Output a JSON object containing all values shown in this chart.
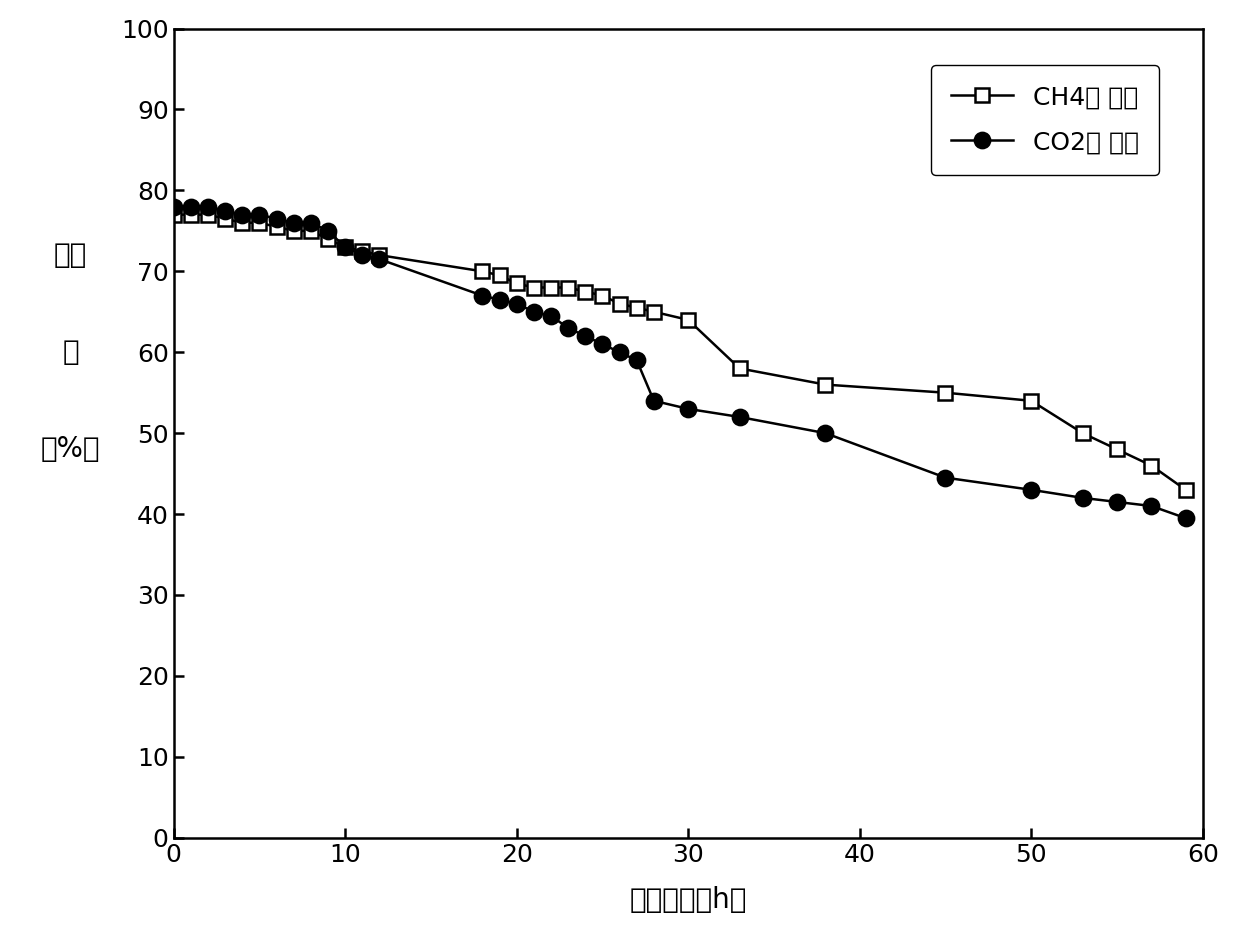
{
  "ch4_x": [
    0,
    1,
    2,
    3,
    4,
    5,
    6,
    7,
    8,
    9,
    10,
    11,
    12,
    18,
    19,
    20,
    21,
    22,
    23,
    24,
    25,
    26,
    27,
    28,
    30,
    33,
    38,
    45,
    50,
    53,
    55,
    57,
    59
  ],
  "ch4_y": [
    77,
    77,
    77,
    76.5,
    76,
    76,
    75.5,
    75,
    75,
    74,
    73,
    72.5,
    72,
    70,
    69.5,
    68.5,
    68,
    68,
    68,
    67.5,
    67,
    66,
    65.5,
    65,
    64,
    58,
    56,
    55,
    54,
    50,
    48,
    46,
    43
  ],
  "co2_x": [
    0,
    1,
    2,
    3,
    4,
    5,
    6,
    7,
    8,
    9,
    10,
    11,
    12,
    18,
    19,
    20,
    21,
    22,
    23,
    24,
    25,
    26,
    27,
    28,
    30,
    33,
    38,
    45,
    50,
    53,
    55,
    57,
    59
  ],
  "co2_y": [
    78,
    78,
    78,
    77.5,
    77,
    77,
    76.5,
    76,
    76,
    75,
    73,
    72,
    71.5,
    67,
    66.5,
    66,
    65,
    64.5,
    63,
    62,
    61,
    60,
    59,
    54,
    53,
    52,
    50,
    44.5,
    43,
    42,
    41.5,
    41,
    39.5
  ],
  "xlabel": "反应时间（h）",
  "ylabel_chars": [
    "转化",
    "率",
    "（%）"
  ],
  "legend_ch4": "CH4转 化率",
  "legend_co2": "CO2转 化率",
  "xlim": [
    0,
    60
  ],
  "ylim": [
    0,
    100
  ],
  "xticks": [
    0,
    10,
    20,
    30,
    40,
    50,
    60
  ],
  "yticks": [
    0,
    10,
    20,
    30,
    40,
    50,
    60,
    70,
    80,
    90,
    100
  ],
  "line_color": "#000000",
  "bg_color": "#ffffff",
  "fontsize_tick": 18,
  "fontsize_label": 20,
  "fontsize_legend": 18,
  "fontsize_ylabel": 20
}
